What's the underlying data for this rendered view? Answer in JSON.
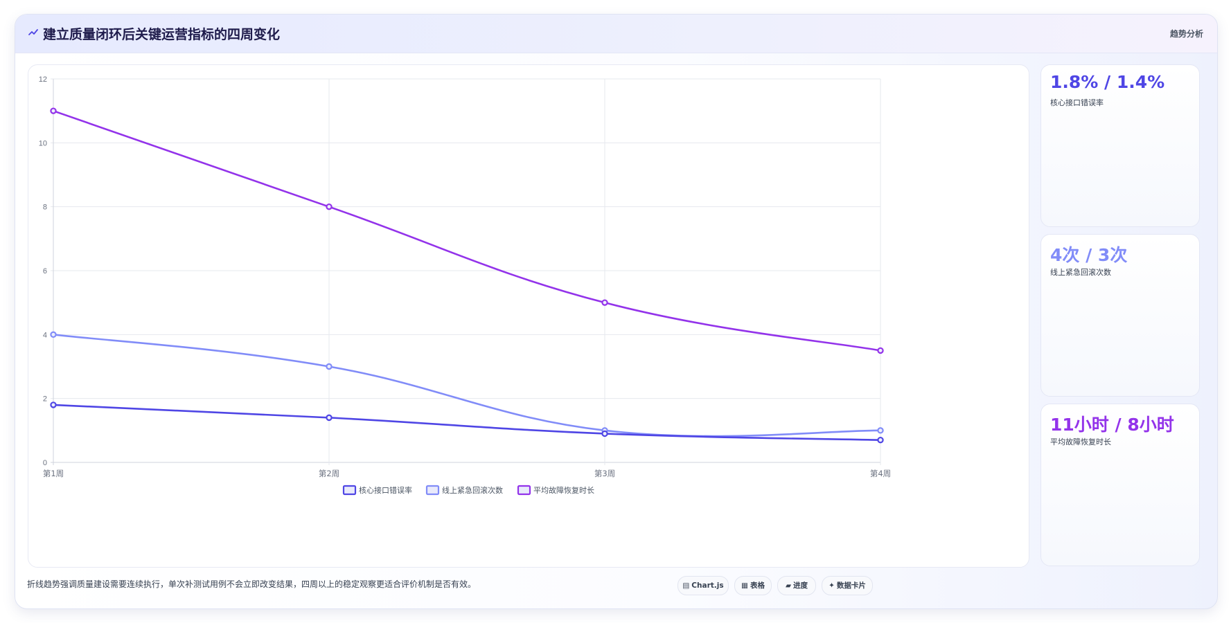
{
  "header": {
    "title": "建立质量闭环后关键运营指标的四周变化",
    "tag": "趋势分析",
    "icon": "sparkline-icon"
  },
  "colors": {
    "series1": "#4f46e5",
    "series2": "#818cf8",
    "series3": "#9333ea",
    "grid": "#e5e7eb"
  },
  "chart_data": {
    "type": "line",
    "categories": [
      "第1周",
      "第2周",
      "第3周",
      "第4周"
    ],
    "series": [
      {
        "name": "核心接口错误率",
        "values": [
          1.8,
          1.4,
          0.9,
          0.7
        ],
        "color": "#4f46e5"
      },
      {
        "name": "线上紧急回滚次数",
        "values": [
          4,
          3,
          1,
          1
        ],
        "color": "#818cf8"
      },
      {
        "name": "平均故障恢复时长",
        "values": [
          11,
          8,
          5,
          3.5
        ],
        "color": "#9333ea"
      }
    ],
    "yticks": [
      "0",
      "2",
      "4",
      "6",
      "8",
      "10",
      "12"
    ],
    "ylim": [
      0,
      12
    ],
    "grid": true,
    "legend_position": "bottom"
  },
  "stats": [
    {
      "value": "1.8% / 1.4%",
      "label": "核心接口错误率",
      "color": "#4f46e5"
    },
    {
      "value": "4次 / 3次",
      "label": "线上紧急回滚次数",
      "color": "#818cf8"
    },
    {
      "value": "11小时 / 8小时",
      "label": "平均故障恢复时长",
      "color": "#9333ea"
    }
  ],
  "footer": {
    "note": "折线趋势强调质量建设需要连续执行，单次补测试用例不会立即改变结果，四周以上的稳定观察更适合评价机制是否有效。",
    "chips": [
      {
        "glyph": "▤",
        "label": "Chart.js"
      },
      {
        "glyph": "▦",
        "label": "表格"
      },
      {
        "glyph": "▰",
        "label": "进度"
      },
      {
        "glyph": "✦",
        "label": "数据卡片"
      }
    ]
  }
}
